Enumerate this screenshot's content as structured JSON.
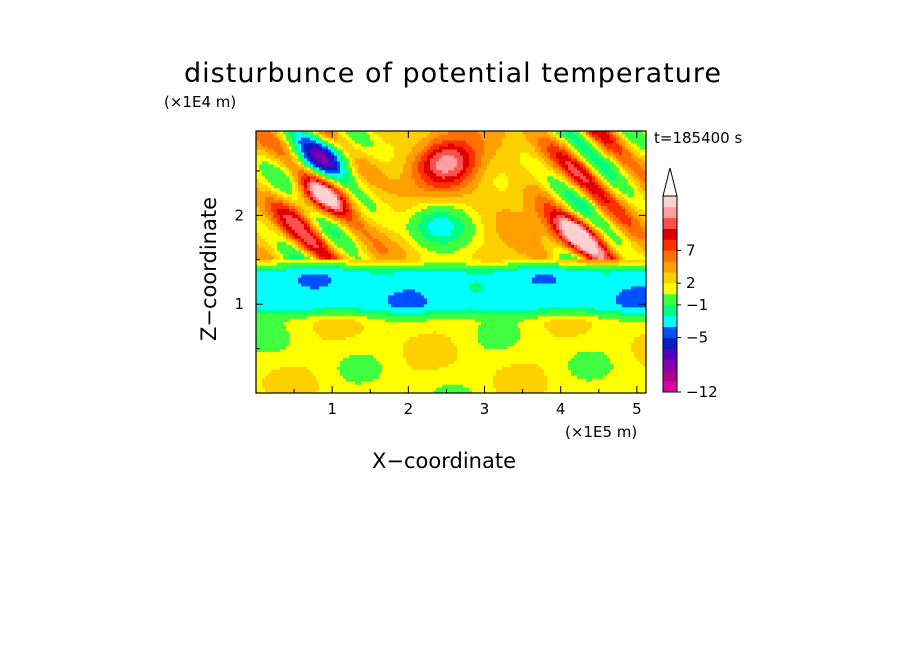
{
  "chart_data": {
    "type": "heatmap",
    "title": "disturbunce of potential temperature",
    "xlabel": "X−coordinate",
    "ylabel": "Z−coordinate",
    "x_unit": "(×1E5 m)",
    "y_unit": "(×1E4 m)",
    "time_label": "t=185400 s",
    "xlim": [
      0,
      5.12
    ],
    "ylim": [
      0,
      2.95
    ],
    "x_ticks": [
      "1",
      "2",
      "3",
      "4",
      "5"
    ],
    "x_tick_values": [
      1,
      2,
      3,
      4,
      5
    ],
    "y_ticks": [
      "1",
      "2"
    ],
    "y_tick_values": [
      1,
      2
    ],
    "colorbar": {
      "colors": [
        "#e000a0",
        "#b00090",
        "#8000b0",
        "#5000c0",
        "#0020c0",
        "#0050ff",
        "#00ffff",
        "#00ff80",
        "#40ff40",
        "#ffff00",
        "#ffd000",
        "#ffa000",
        "#ff7000",
        "#ff3000",
        "#e00000",
        "#ff5050",
        "#ffa0a0",
        "#ffd0d0"
      ],
      "tick_labels": [
        "−12",
        "−5",
        "−1",
        "2",
        "7"
      ],
      "tick_levels": [
        0,
        5,
        8,
        10,
        13
      ],
      "extend_max": true
    },
    "field_bands": [
      {
        "name": "lower layer",
        "z": [
          0.0,
          0.8
        ],
        "dominant_value": 1
      },
      {
        "name": "cold band",
        "z": [
          1.0,
          1.35
        ],
        "dominant_value": -3
      },
      {
        "name": "upper layer",
        "z": [
          1.5,
          2.95
        ],
        "dominant_value": 2
      }
    ],
    "features": [
      {
        "x": 2.5,
        "z": 2.6,
        "value": 7,
        "kind": "warm"
      },
      {
        "x": 2.4,
        "z": 1.9,
        "value": -3,
        "kind": "cold"
      },
      {
        "x": 0.9,
        "z": 2.65,
        "value": -6,
        "kind": "cold"
      },
      {
        "x": 4.2,
        "z": 1.8,
        "value": 6,
        "kind": "warm"
      },
      {
        "x": 0.8,
        "z": 2.2,
        "value": 6,
        "kind": "warm"
      }
    ]
  }
}
